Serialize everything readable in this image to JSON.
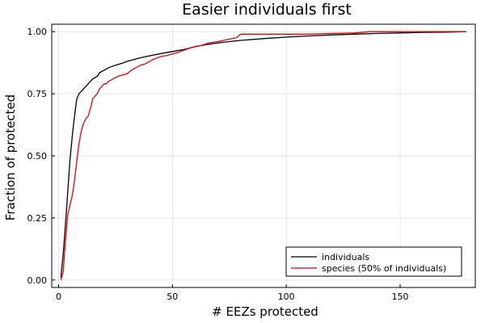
{
  "chart_data": {
    "type": "line",
    "title": "Easier individuals first",
    "xlabel": "# EEZs protected",
    "ylabel": "Fraction of protected",
    "xlim": [
      -3,
      183
    ],
    "ylim": [
      -0.03,
      1.03
    ],
    "xticks": [
      0,
      50,
      100,
      150
    ],
    "xtick_labels": [
      "0",
      "50",
      "100",
      "150"
    ],
    "yticks": [
      0,
      0.25,
      0.5,
      0.75,
      1.0
    ],
    "ytick_labels": [
      "0.00",
      "0.25",
      "0.50",
      "0.75",
      "1.00"
    ],
    "grid": true,
    "legend": "bottom-right",
    "series": [
      {
        "name": "individuals",
        "color": "#000000",
        "x": [
          1,
          2,
          3,
          4,
          5,
          6,
          7,
          8,
          9,
          10,
          11,
          12,
          13,
          14,
          15,
          16,
          17,
          18,
          20,
          22,
          25,
          28,
          30,
          33,
          36,
          40,
          45,
          50,
          55,
          58,
          60,
          65,
          70,
          75,
          80,
          90,
          100,
          110,
          120,
          130,
          140,
          150,
          160,
          170,
          179
        ],
        "y": [
          0.01,
          0.1,
          0.22,
          0.35,
          0.48,
          0.58,
          0.66,
          0.73,
          0.75,
          0.76,
          0.77,
          0.78,
          0.79,
          0.8,
          0.81,
          0.815,
          0.82,
          0.835,
          0.845,
          0.855,
          0.865,
          0.873,
          0.88,
          0.888,
          0.895,
          0.903,
          0.912,
          0.92,
          0.928,
          0.935,
          0.94,
          0.948,
          0.955,
          0.96,
          0.965,
          0.972,
          0.978,
          0.983,
          0.987,
          0.99,
          0.993,
          0.995,
          0.997,
          0.998,
          1.0
        ]
      },
      {
        "name": "species (50% of individuals)",
        "color": "#e8000b",
        "x": [
          1,
          2,
          3,
          4,
          5,
          6,
          7,
          8,
          9,
          10,
          11,
          12,
          13,
          14,
          15,
          16,
          17,
          18,
          19,
          20,
          21,
          22,
          24,
          26,
          28,
          30,
          32,
          34,
          36,
          38,
          40,
          42,
          45,
          48,
          50,
          52,
          55,
          58,
          60,
          63,
          66,
          70,
          75,
          78,
          80,
          90,
          100,
          110,
          120,
          130,
          137,
          140,
          150,
          160,
          170,
          179
        ],
        "y": [
          0.0,
          0.03,
          0.15,
          0.26,
          0.3,
          0.34,
          0.4,
          0.48,
          0.55,
          0.6,
          0.63,
          0.65,
          0.66,
          0.69,
          0.73,
          0.74,
          0.75,
          0.77,
          0.78,
          0.79,
          0.79,
          0.8,
          0.81,
          0.82,
          0.825,
          0.83,
          0.845,
          0.855,
          0.865,
          0.87,
          0.88,
          0.89,
          0.9,
          0.905,
          0.91,
          0.915,
          0.925,
          0.935,
          0.94,
          0.945,
          0.955,
          0.96,
          0.97,
          0.975,
          0.99,
          0.99,
          0.99,
          0.99,
          0.993,
          0.995,
          1.0,
          1.0,
          1.0,
          1.0,
          1.0,
          1.0
        ]
      }
    ]
  }
}
